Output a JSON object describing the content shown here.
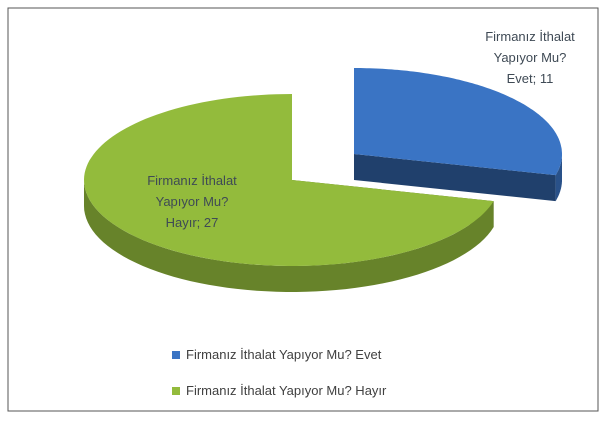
{
  "chart_data": {
    "type": "pie",
    "categories": [
      "Firmanız İthalat Yapıyor Mu? Evet",
      "Firmanız İthalat Yapıyor Mu? Hayır"
    ],
    "values": [
      11,
      27
    ],
    "value_labels": [
      "Firmanız İthalat Yapıyor Mu? Evet; 11",
      "Firmanız İthalat Yapıyor Mu? Hayır; 27"
    ],
    "colors": [
      "#3a74c4",
      "#93bb3c"
    ],
    "legend": "bottom"
  }
}
